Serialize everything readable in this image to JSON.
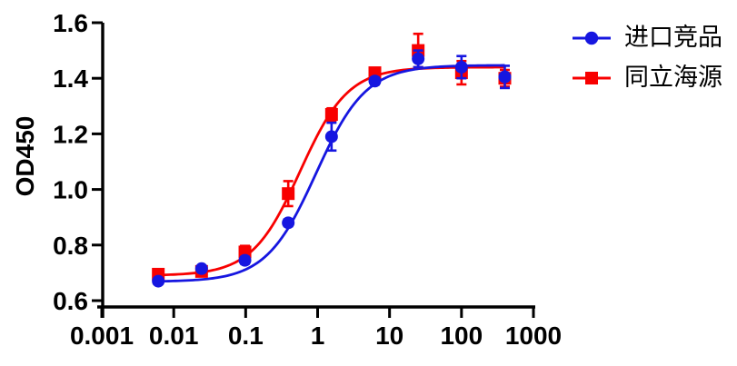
{
  "chart_data": {
    "type": "scatter",
    "title": "",
    "xlabel": "",
    "ylabel": "OD450",
    "x_scale": "log",
    "xlim": [
      0.001,
      1000
    ],
    "ylim": [
      0.6,
      1.6
    ],
    "x_tick_labels": [
      "0.001",
      "0.01",
      "0.1",
      "1",
      "10",
      "100",
      "1000"
    ],
    "x_tick_values": [
      0.001,
      0.01,
      0.1,
      1,
      10,
      100,
      1000
    ],
    "y_tick_labels": [
      "0.6",
      "0.8",
      "1.0",
      "1.2",
      "1.4",
      "1.6"
    ],
    "y_tick_values": [
      0.6,
      0.8,
      1.0,
      1.2,
      1.4,
      1.6
    ],
    "grid": false,
    "legend_position": "right",
    "x": [
      0.0061,
      0.0244,
      0.0977,
      0.3906,
      1.5625,
      6.25,
      25,
      100,
      400
    ],
    "series": [
      {
        "name": "同立海源",
        "color": "#f80000",
        "marker": "square",
        "values": [
          0.695,
          0.705,
          0.775,
          0.985,
          1.27,
          1.42,
          1.5,
          1.42,
          1.4
        ],
        "errors": [
          0.012,
          0.01,
          0.022,
          0.045,
          0.022,
          0.012,
          0.06,
          0.042,
          0.03
        ],
        "fit_4pl": {
          "bottom": 0.69,
          "top": 1.44,
          "ec50": 0.57,
          "hill": 1.3
        }
      },
      {
        "name": "进口竞品",
        "color": "#1616e0",
        "marker": "circle",
        "values": [
          0.67,
          0.715,
          0.745,
          0.88,
          1.19,
          1.39,
          1.47,
          1.44,
          1.405
        ],
        "errors": [
          0.01,
          0.01,
          0.012,
          0.012,
          0.05,
          0.012,
          0.03,
          0.04,
          0.04
        ],
        "fit_4pl": {
          "bottom": 0.668,
          "top": 1.447,
          "ec50": 0.95,
          "hill": 1.25
        }
      }
    ]
  },
  "legend": {
    "items": [
      {
        "label": "进口竞品",
        "color": "#1616e0",
        "marker": "circle"
      },
      {
        "label": "同立海源",
        "color": "#f80000",
        "marker": "square"
      }
    ]
  },
  "colors": {
    "axis": "#000000",
    "background": "#ffffff",
    "series_blue": "#1616e0",
    "series_red": "#f80000"
  }
}
